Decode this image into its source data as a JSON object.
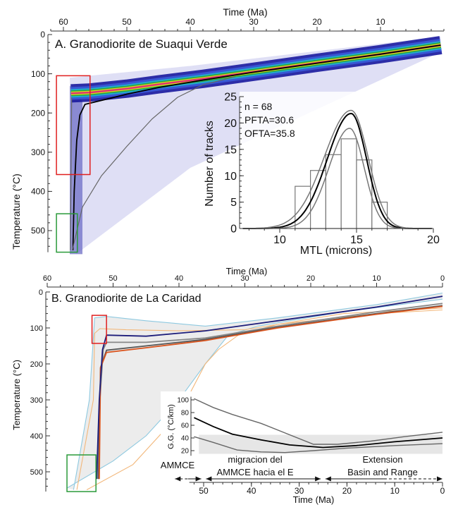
{
  "chart_data": [
    {
      "type": "line",
      "panel_title": "A. Granodiorite de Suaqui Verde",
      "xlabel": "Time (Ma)",
      "ylabel": "Temperature (°C)",
      "xlim": [
        62,
        0
      ],
      "ylim": [
        0,
        555
      ],
      "xticks": [
        60,
        50,
        40,
        30,
        20,
        10
      ],
      "yticks": [
        0,
        100,
        200,
        300,
        400,
        500
      ],
      "x_axis_position": "top",
      "density_band": {
        "colors": [
          "#1a1a9e",
          "#3a5bd9",
          "#1fb5c9",
          "#2ca02c",
          "#e8e61a",
          "#e0207a"
        ]
      },
      "series": [
        {
          "color": "#000000",
          "points": [
            [
              58.5,
              550
            ],
            [
              58.3,
              400
            ],
            [
              57.9,
              270
            ],
            [
              57.4,
              205
            ],
            [
              56.6,
              178
            ],
            [
              54,
              168
            ],
            [
              50,
              152
            ],
            [
              45,
              135
            ],
            [
              38,
              116
            ],
            [
              30,
              96
            ],
            [
              20,
              73
            ],
            [
              10,
              50
            ],
            [
              0.5,
              27
            ]
          ]
        },
        {
          "color": "#666666",
          "points": [
            [
              58.6,
              550
            ],
            [
              57,
              440
            ],
            [
              54,
              360
            ],
            [
              50,
              285
            ],
            [
              46,
              215
            ],
            [
              42,
              160
            ],
            [
              38,
              128
            ],
            [
              33,
              108
            ]
          ]
        },
        {
          "color": "#666666",
          "points": [
            [
              58.9,
              550
            ],
            [
              58.8,
              350
            ],
            [
              58.7,
              160
            ]
          ]
        }
      ],
      "constraints": [
        {
          "color": "#e02020",
          "time": [
            61.1,
            55.8
          ],
          "temp": [
            105,
            357
          ]
        },
        {
          "color": "#2a9a3a",
          "time": [
            61.1,
            57.8
          ],
          "temp": [
            457,
            555
          ]
        }
      ]
    },
    {
      "type": "bar",
      "annotations": [
        "n = 68",
        "PFTA=30.6",
        "OFTA=35.8"
      ],
      "xlabel": "MTL (microns)",
      "ylabel": "Number of tracks",
      "xlim": [
        7.5,
        20
      ],
      "ylim": [
        0,
        25
      ],
      "xticks": [
        10,
        15,
        20
      ],
      "yticks": [
        0,
        5,
        10,
        15,
        20,
        25
      ],
      "bins": [
        [
          11,
          12
        ],
        [
          12,
          13
        ],
        [
          13,
          14
        ],
        [
          14,
          15
        ],
        [
          15,
          16
        ],
        [
          16,
          17
        ]
      ],
      "values": [
        8,
        11,
        14,
        17,
        13,
        5
      ],
      "fits": [
        {
          "color": "#000000",
          "peak": 21.8,
          "mean": 14.65,
          "sd_left": 1.55,
          "sd_right": 1.0
        },
        {
          "color": "#777777",
          "peak": 22.4,
          "mean": 14.65,
          "sd_left": 1.75,
          "sd_right": 1.1
        },
        {
          "color": "#777777",
          "peak": 19.0,
          "mean": 14.55,
          "sd_left": 1.35,
          "sd_right": 0.95
        }
      ]
    },
    {
      "type": "line",
      "panel_title": "B. Granodiorite de La Caridad",
      "xlabel": "Time (Ma)",
      "ylabel": "Temperature (°C)",
      "xlim": [
        60,
        0
      ],
      "ylim": [
        0,
        555
      ],
      "xticks": [
        60,
        50,
        40,
        30,
        20,
        10,
        0
      ],
      "yticks": [
        0,
        100,
        200,
        300,
        400,
        500
      ],
      "x_axis_position": "top",
      "envelope_fill": "#ececec",
      "series": [
        {
          "color": "#8ec9e0",
          "points": [
            [
              56,
              550
            ],
            [
              53.6,
              300
            ],
            [
              52.8,
              72
            ],
            [
              51,
              68
            ],
            [
              45,
              80
            ],
            [
              36,
              95
            ],
            [
              25,
              72
            ],
            [
              10,
              35
            ],
            [
              0,
              3
            ]
          ]
        },
        {
          "color": "#8ec9e0",
          "points": [
            [
              57,
              545
            ],
            [
              50,
              470
            ],
            [
              45,
              400
            ],
            [
              40,
              300
            ],
            [
              36,
              200
            ],
            [
              32.5,
              120
            ],
            [
              28,
              95
            ],
            [
              15,
              55
            ],
            [
              0,
              20
            ]
          ]
        },
        {
          "color": "#f2b77a",
          "points": [
            [
              55.5,
              550
            ],
            [
              53,
              300
            ],
            [
              52.8,
              115
            ],
            [
              52,
              102
            ],
            [
              48,
              105
            ],
            [
              40,
              108
            ],
            [
              30,
              105
            ],
            [
              15,
              60
            ],
            [
              0,
              45
            ]
          ]
        },
        {
          "color": "#f2b77a",
          "points": [
            [
              54,
              550
            ],
            [
              47,
              480
            ],
            [
              40,
              340
            ],
            [
              36,
              200
            ],
            [
              34,
              160
            ],
            [
              31,
              120
            ],
            [
              25,
              90
            ],
            [
              10,
              60
            ],
            [
              0,
              50
            ]
          ]
        },
        {
          "color": "#888888",
          "points": [
            [
              52.3,
              520
            ],
            [
              52,
              300
            ],
            [
              51.5,
              160
            ],
            [
              51,
              140
            ],
            [
              45,
              140
            ],
            [
              36,
              128
            ],
            [
              25,
              95
            ],
            [
              10,
              55
            ],
            [
              0,
              32
            ]
          ]
        },
        {
          "color": "#555555",
          "points": [
            [
              52.2,
              520
            ],
            [
              51.9,
              210
            ],
            [
              51,
              162
            ],
            [
              45,
              150
            ],
            [
              36,
              132
            ],
            [
              25,
              98
            ],
            [
              10,
              60
            ],
            [
              0,
              38
            ]
          ]
        },
        {
          "color": "#d9541e",
          "points": [
            [
              52.1,
              520
            ],
            [
              51.9,
              210
            ],
            [
              51,
              168
            ],
            [
              45,
              155
            ],
            [
              36,
              135
            ],
            [
              25,
              100
            ],
            [
              10,
              62
            ],
            [
              0,
              40
            ]
          ]
        },
        {
          "color": "#1c1c7a",
          "points": [
            [
              52.5,
              520
            ],
            [
              52.1,
              300
            ],
            [
              51.6,
              160
            ],
            [
              51,
              120
            ],
            [
              45,
              123
            ],
            [
              36,
              108
            ],
            [
              25,
              80
            ],
            [
              10,
              42
            ],
            [
              0,
              12
            ]
          ]
        }
      ],
      "constraints": [
        {
          "color": "#e02020",
          "time": [
            53.2,
            51.0
          ],
          "temp": [
            65,
            143
          ]
        },
        {
          "color": "#2a9a3a",
          "time": [
            57.0,
            52.6
          ],
          "temp": [
            453,
            555
          ]
        }
      ]
    },
    {
      "type": "line",
      "ylabel": "G.G. (°C/km)",
      "xlabel": "Time (Ma)",
      "xlim": [
        52,
        0
      ],
      "ylim": [
        12,
        105
      ],
      "xticks": [
        50,
        40,
        30,
        20,
        10,
        0
      ],
      "yticks": [
        20,
        40,
        60,
        80,
        100
      ],
      "shaded_band": [
        15,
        45
      ],
      "series": [
        {
          "color": "#666666",
          "points": [
            [
              52,
              102
            ],
            [
              48,
              88
            ],
            [
              44,
              77
            ],
            [
              38,
              63
            ],
            [
              32,
              45
            ],
            [
              27,
              30
            ],
            [
              22,
              30
            ],
            [
              15,
              35
            ],
            [
              8,
              42
            ],
            [
              0,
              49
            ]
          ]
        },
        {
          "color": "#000000",
          "points": [
            [
              52,
              72
            ],
            [
              48,
              58
            ],
            [
              44,
              46
            ],
            [
              38,
              37
            ],
            [
              32,
              29
            ],
            [
              25,
              25
            ],
            [
              18,
              28
            ],
            [
              10,
              34
            ],
            [
              0,
              40
            ]
          ]
        },
        {
          "color": "#666666",
          "points": [
            [
              52,
              42
            ],
            [
              48,
              33
            ],
            [
              43,
              21
            ],
            [
              38,
              18
            ],
            [
              33,
              17
            ],
            [
              27,
              20
            ],
            [
              20,
              24
            ],
            [
              10,
              28
            ],
            [
              0,
              31
            ]
          ]
        }
      ],
      "periods": [
        {
          "label": "AMMCE",
          "from": 60,
          "to": 50
        },
        {
          "label": "migracion del AMMCE hacia el E",
          "line1": "migracion del",
          "line2": "AMMCE hacia el E",
          "from": 49,
          "to": 25
        },
        {
          "label": "Extension Basin and Range",
          "line1": "Extension",
          "line2": "Basin and Range",
          "from": 25,
          "to": 0
        }
      ]
    }
  ]
}
